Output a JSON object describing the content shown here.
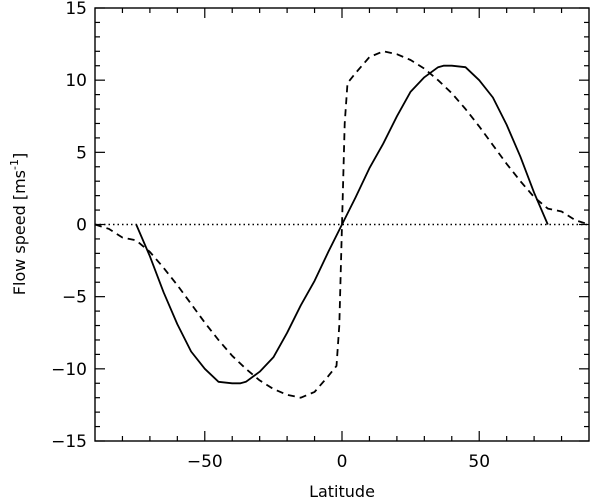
{
  "chart_data": {
    "type": "line",
    "xlabel": "Latitude",
    "ylabel": "Flow speed [ms",
    "ylabel_sup": "-1",
    "ylabel_close": "]",
    "xlim": [
      -90,
      90
    ],
    "ylim": [
      -15,
      15
    ],
    "xticks": [
      -50,
      0,
      50
    ],
    "xtick_labels": [
      "−50",
      "0",
      "50"
    ],
    "yticks": [
      -15,
      -10,
      -5,
      0,
      5,
      10,
      15
    ],
    "ytick_labels": [
      "−15",
      "−10",
      "−5",
      "0",
      "5",
      "10",
      "15"
    ],
    "grid": false,
    "series": [
      {
        "style": "solid",
        "x": [
          -75,
          -70,
          -65,
          -60,
          -55,
          -50,
          -45,
          -40,
          -37,
          -35,
          -30,
          -25,
          -20,
          -15,
          -10,
          -5,
          0,
          5,
          10,
          15,
          20,
          25,
          30,
          35,
          37,
          40,
          45,
          50,
          55,
          60,
          65,
          70,
          75
        ],
        "y": [
          0,
          -2.2,
          -4.7,
          -6.9,
          -8.8,
          -10.0,
          -10.9,
          -11.0,
          -11.0,
          -10.9,
          -10.2,
          -9.2,
          -7.5,
          -5.6,
          -3.9,
          -1.9,
          0,
          1.9,
          3.9,
          5.6,
          7.5,
          9.2,
          10.2,
          10.9,
          11.0,
          11.0,
          10.9,
          10.0,
          8.8,
          6.9,
          4.7,
          2.2,
          0
        ]
      },
      {
        "style": "dashed",
        "x": [
          -90,
          -85,
          -80,
          -75,
          -70,
          -65,
          -60,
          -55,
          -50,
          -45,
          -40,
          -35,
          -30,
          -25,
          -20,
          -15,
          -10,
          -5,
          -2,
          -1,
          0,
          1,
          2,
          5,
          10,
          15,
          20,
          25,
          30,
          35,
          40,
          45,
          50,
          55,
          60,
          65,
          70,
          75,
          80,
          85,
          90
        ],
        "y": [
          0,
          -0.3,
          -0.9,
          -1.1,
          -1.9,
          -3.0,
          -4.2,
          -5.5,
          -6.8,
          -8.0,
          -9.1,
          -10.0,
          -10.8,
          -11.4,
          -11.8,
          -12.0,
          -11.6,
          -10.5,
          -9.8,
          -7.0,
          0,
          7.0,
          9.8,
          10.5,
          11.6,
          12.0,
          11.8,
          11.4,
          10.8,
          10.0,
          9.1,
          8.0,
          6.8,
          5.5,
          4.2,
          3.0,
          1.9,
          1.1,
          0.9,
          0.3,
          0
        ]
      },
      {
        "style": "dotted",
        "x": [
          -90,
          90
        ],
        "y": [
          0,
          0
        ]
      }
    ]
  }
}
